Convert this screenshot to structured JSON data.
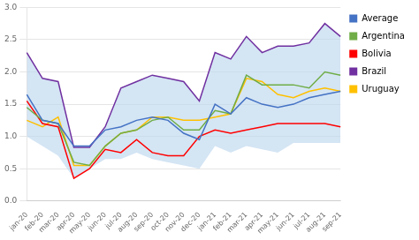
{
  "chart_data": {
    "type": "line",
    "categories": [
      "jan-20",
      "feb-20",
      "mar-20",
      "apr-20",
      "may-20",
      "jun-20",
      "jul-20",
      "aug-20",
      "sep-20",
      "oct-20",
      "nov-20",
      "dec-20",
      "jan-21",
      "feb-21",
      "mar-21",
      "apr-21",
      "may-21",
      "jun-21",
      "jul-21",
      "aug-21",
      "sep-21"
    ],
    "series": [
      {
        "name": "Average",
        "color": "#4472C4",
        "values": [
          1.65,
          1.25,
          1.2,
          0.85,
          0.85,
          1.1,
          1.15,
          1.25,
          1.3,
          1.25,
          1.05,
          0.95,
          1.5,
          1.35,
          1.6,
          1.5,
          1.45,
          1.5,
          1.6,
          1.65,
          1.7
        ]
      },
      {
        "name": "Argentina",
        "color": "#70AD47",
        "values": [
          1.45,
          1.25,
          1.2,
          0.6,
          0.55,
          0.85,
          1.05,
          1.1,
          1.25,
          1.3,
          1.1,
          1.1,
          1.4,
          1.35,
          1.95,
          1.8,
          1.8,
          1.8,
          1.75,
          2.0,
          1.95
        ]
      },
      {
        "name": "Bolivia",
        "color": "#FF0000",
        "values": [
          1.55,
          1.2,
          1.15,
          0.35,
          0.5,
          0.8,
          0.75,
          0.95,
          0.75,
          0.7,
          0.7,
          1.0,
          1.1,
          1.05,
          1.1,
          1.15,
          1.2,
          1.2,
          1.2,
          1.2,
          1.15
        ]
      },
      {
        "name": "Brazil",
        "color": "#7030A0",
        "values": [
          2.3,
          1.9,
          1.85,
          0.83,
          0.83,
          1.15,
          1.75,
          1.85,
          1.95,
          1.9,
          1.85,
          1.55,
          2.3,
          2.2,
          2.55,
          2.3,
          2.4,
          2.4,
          2.45,
          2.75,
          2.55
        ]
      },
      {
        "name": "Uruguay",
        "color": "#FFC000",
        "values": [
          1.25,
          1.15,
          1.3,
          0.55,
          0.55,
          0.85,
          1.05,
          1.1,
          1.3,
          1.3,
          1.25,
          1.25,
          1.3,
          1.35,
          1.9,
          1.85,
          1.65,
          1.6,
          1.7,
          1.75,
          1.7
        ]
      }
    ],
    "band": {
      "lower": [
        1.0,
        0.85,
        0.7,
        0.35,
        0.5,
        0.65,
        0.65,
        0.75,
        0.65,
        0.6,
        0.55,
        0.5,
        0.85,
        0.75,
        0.85,
        0.8,
        0.75,
        0.9,
        0.9,
        0.9,
        0.9
      ],
      "upper": [
        2.3,
        1.9,
        1.85,
        0.83,
        0.83,
        1.15,
        1.75,
        1.85,
        1.95,
        1.9,
        1.85,
        1.55,
        2.3,
        2.2,
        2.55,
        2.3,
        2.4,
        2.4,
        2.45,
        2.75,
        2.55
      ],
      "color": "#BDD7EE"
    },
    "ylim": [
      0,
      3.0
    ],
    "yticks": [
      {
        "value": 0,
        "label": "0.0"
      },
      0.5,
      {
        "value": 1.0,
        "label": "1.0"
      },
      1.5,
      {
        "value": 2.0,
        "label": "2.0"
      },
      2.5,
      {
        "value": 3.0,
        "label": "3.0"
      }
    ],
    "grid": true,
    "legend": "right"
  }
}
